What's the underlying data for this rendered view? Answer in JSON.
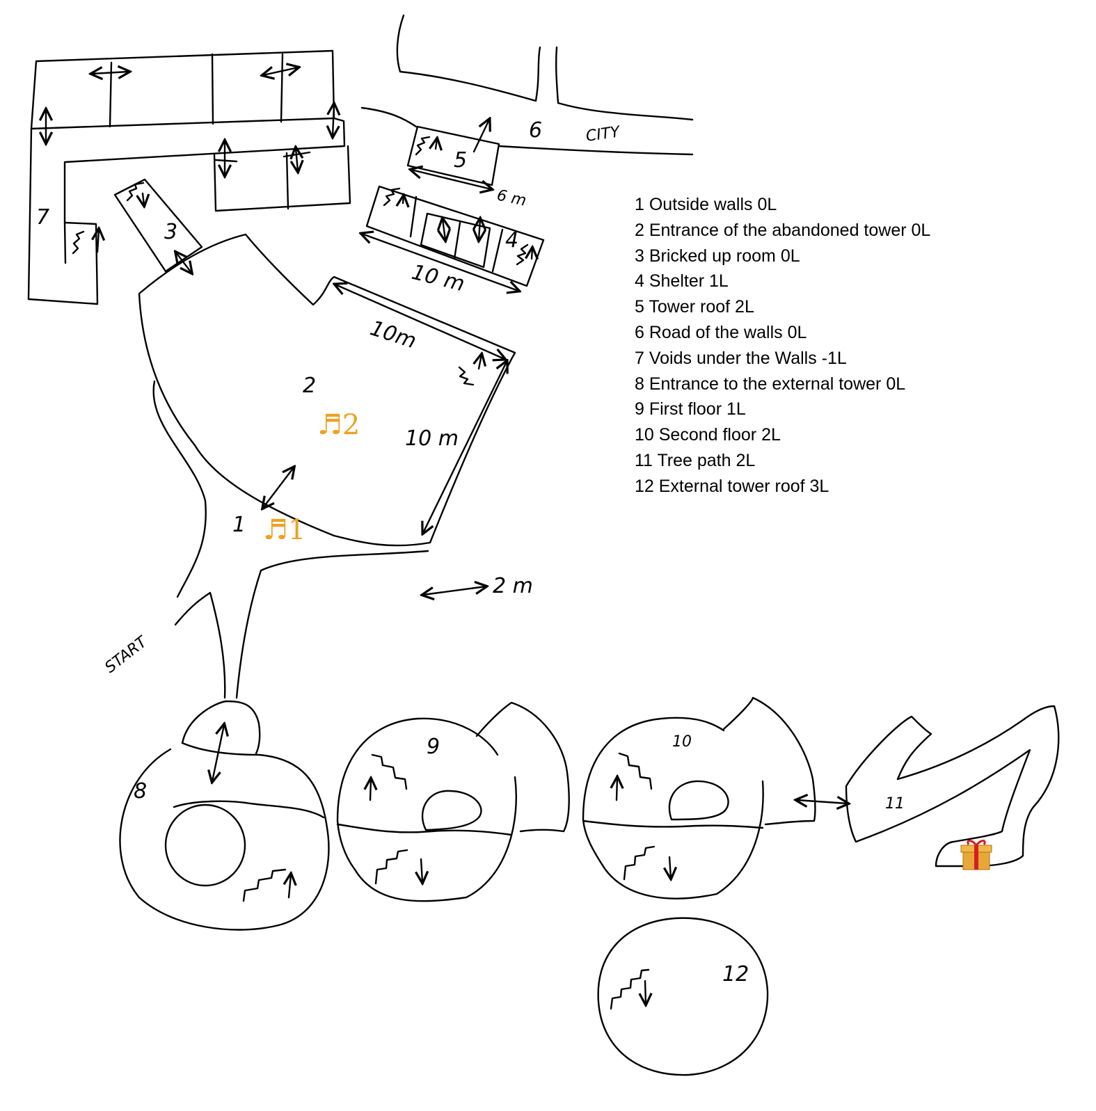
{
  "legend": [
    "1 Outside walls  0L",
    "2 Entrance of the abandoned tower  0L",
    "3 Bricked up room  0L",
    "4 Shelter  1L",
    "5 Tower roof 2L",
    "6 Road of the walls  0L",
    "7 Voids under the Walls  -1L",
    "8 Entrance to the external tower  0L",
    "9 First floor  1L",
    "10 Second floor  2L",
    "11 Tree path  2L",
    "12 External tower roof  3L"
  ],
  "labels": {
    "area_1": "1",
    "area_2": "2",
    "area_3": "3",
    "area_4": "4",
    "area_5": "5",
    "area_6": "6",
    "area_7": "7",
    "area_8": "8",
    "area_9": "9",
    "area_10": "10",
    "area_11": "11",
    "area_12": "12",
    "city": "CITY",
    "start": "START",
    "dim_6m": "6 m",
    "dim_10m_shelter": "10 m",
    "dim_10m_top": "10m",
    "dim_10m_side": "10 m",
    "scale_2m": "2 m"
  },
  "music_markers": [
    "♬1",
    "♬2"
  ],
  "icons": {
    "gift": "gift-icon",
    "music_note": "music-note-icon"
  },
  "colors": {
    "ink": "#000000",
    "music": "#f0a020",
    "gift_box": "#e8a838",
    "gift_ribbon": "#d42020"
  }
}
